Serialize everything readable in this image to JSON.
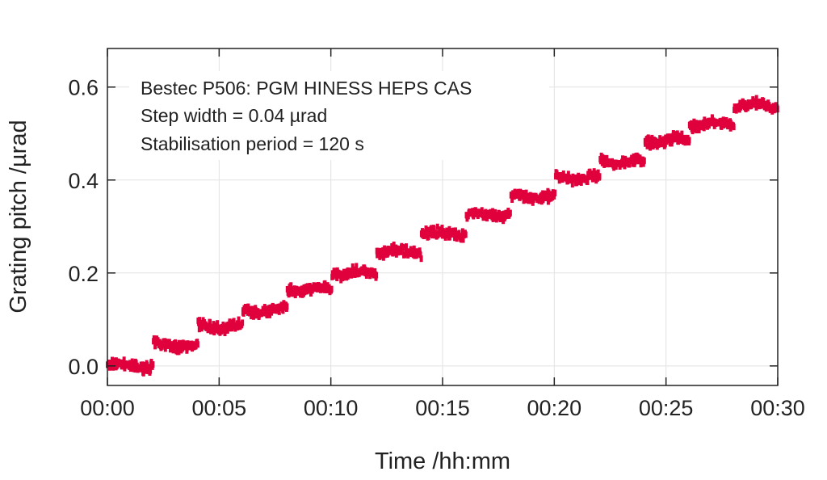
{
  "chart_data": {
    "type": "scatter",
    "xlabel": "Time /hh:mm",
    "ylabel": "Grating pitch /µrad",
    "xlim": [
      0,
      30
    ],
    "ylim": [
      -0.042,
      0.683
    ],
    "x_unit": "minutes",
    "x_ticks": [
      0,
      5,
      10,
      15,
      20,
      25,
      30
    ],
    "x_tick_labels": [
      "00:00",
      "00:05",
      "00:10",
      "00:15",
      "00:20",
      "00:25",
      "00:30"
    ],
    "y_ticks": [
      0.0,
      0.2,
      0.4,
      0.6
    ],
    "y_tick_labels": [
      "0.0",
      "0.2",
      "0.4",
      "0.6"
    ],
    "grid": true,
    "annotation": [
      "Bestec P506: PGM HINESS HEPS CAS",
      "Step width = 0.04 µrad",
      "Stabilisation period = 120 s"
    ],
    "series": [
      {
        "name": "Grating pitch",
        "color": "#e0003c",
        "noise_amplitude": 0.012,
        "steps": [
          {
            "start": 0,
            "end": 2.05,
            "level": 0.0
          },
          {
            "start": 2.05,
            "end": 4.05,
            "level": 0.045
          },
          {
            "start": 4.05,
            "end": 6.05,
            "level": 0.085
          },
          {
            "start": 6.05,
            "end": 8.05,
            "level": 0.12
          },
          {
            "start": 8.05,
            "end": 10.05,
            "level": 0.165
          },
          {
            "start": 10.05,
            "end": 12.05,
            "level": 0.2
          },
          {
            "start": 12.05,
            "end": 14.05,
            "level": 0.245
          },
          {
            "start": 14.05,
            "end": 16.05,
            "level": 0.285
          },
          {
            "start": 16.05,
            "end": 18.05,
            "level": 0.325
          },
          {
            "start": 18.05,
            "end": 20.05,
            "level": 0.365
          },
          {
            "start": 20.05,
            "end": 22.05,
            "level": 0.405
          },
          {
            "start": 22.05,
            "end": 24.05,
            "level": 0.44
          },
          {
            "start": 24.05,
            "end": 26.05,
            "level": 0.485
          },
          {
            "start": 26.05,
            "end": 28.05,
            "level": 0.52
          },
          {
            "start": 28.05,
            "end": 30,
            "level": 0.56
          }
        ]
      }
    ]
  }
}
